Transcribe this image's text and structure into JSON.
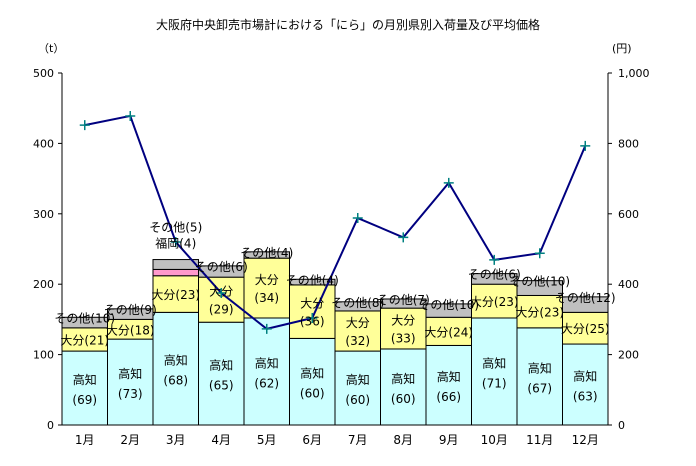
{
  "chart_data": {
    "type": "bar",
    "title": "大阪府中央卸売市場計における「にら」の月別県別入荷量及び平均価格",
    "ylabel_left": "（t）",
    "ylabel_right": "(円)",
    "ylim_left": [
      0,
      500
    ],
    "ylim_right": [
      0,
      1000
    ],
    "left_ticks": [
      "0",
      "100",
      "200",
      "300",
      "400",
      "500"
    ],
    "right_ticks": [
      "0",
      "200",
      "400",
      "600",
      "800",
      "1,000"
    ],
    "categories": [
      "1月",
      "2月",
      "3月",
      "4月",
      "5月",
      "6月",
      "7月",
      "8月",
      "9月",
      "10月",
      "11月",
      "12月"
    ],
    "series": [
      {
        "name": "高知",
        "color": "#ccffff",
        "values": [
          105,
          122,
          160,
          146,
          152,
          123,
          105,
          108,
          113,
          152,
          138,
          115
        ],
        "share_pct": [
          69,
          73,
          68,
          65,
          62,
          60,
          60,
          60,
          66,
          71,
          67,
          63
        ]
      },
      {
        "name": "大分",
        "color": "#ffff99",
        "values": [
          33,
          28,
          52,
          64,
          85,
          76,
          57,
          58,
          40,
          48,
          46,
          45
        ],
        "share_pct": [
          21,
          18,
          23,
          29,
          34,
          36,
          32,
          33,
          24,
          23,
          23,
          25
        ]
      },
      {
        "name": "福岡",
        "color": "#ff99cc",
        "values": [
          0,
          0,
          9,
          0,
          0,
          0,
          0,
          0,
          0,
          0,
          0,
          0
        ],
        "share_pct": [
          null,
          null,
          4,
          null,
          null,
          null,
          null,
          null,
          null,
          null,
          null,
          null
        ]
      },
      {
        "name": "その他",
        "color": "#c0c0c0",
        "values": [
          15,
          15,
          14,
          16,
          9,
          8,
          13,
          13,
          19,
          15,
          21,
          22
        ],
        "share_pct": [
          10,
          9,
          5,
          6,
          4,
          4,
          8,
          7,
          10,
          6,
          10,
          12
        ]
      }
    ],
    "line": {
      "name": "平均価格",
      "axis": "right",
      "color": "#000080",
      "marker_color": "#008080",
      "values": [
        852,
        878,
        520,
        375,
        273,
        304,
        588,
        533,
        688,
        469,
        488,
        793
      ]
    },
    "grid": false
  }
}
